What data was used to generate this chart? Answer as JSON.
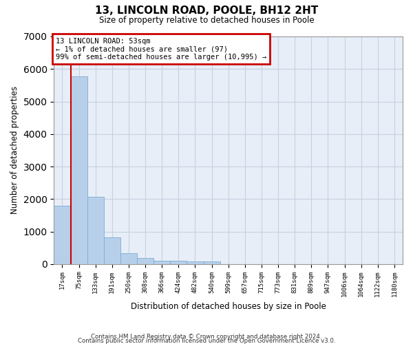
{
  "title": "13, LINCOLN ROAD, POOLE, BH12 2HT",
  "subtitle": "Size of property relative to detached houses in Poole",
  "xlabel": "Distribution of detached houses by size in Poole",
  "ylabel": "Number of detached properties",
  "footer_line1": "Contains HM Land Registry data © Crown copyright and database right 2024.",
  "footer_line2": "Contains public sector information licensed under the Open Government Licence v3.0.",
  "annotation_line1": "13 LINCOLN ROAD: 53sqm",
  "annotation_line2": "← 1% of detached houses are smaller (97)",
  "annotation_line3": "99% of semi-detached houses are larger (10,995) →",
  "bar_color": "#b8cfea",
  "bar_edge_color": "#7aadd4",
  "vline_color": "#cc0000",
  "annotation_box_color": "#cc0000",
  "bg_color": "#e8eef8",
  "grid_color": "#c5d0e0",
  "categories": [
    "17sqm",
    "75sqm",
    "133sqm",
    "191sqm",
    "250sqm",
    "308sqm",
    "366sqm",
    "424sqm",
    "482sqm",
    "540sqm",
    "599sqm",
    "657sqm",
    "715sqm",
    "773sqm",
    "831sqm",
    "889sqm",
    "947sqm",
    "1006sqm",
    "1064sqm",
    "1122sqm",
    "1180sqm"
  ],
  "values": [
    1790,
    5780,
    2060,
    820,
    340,
    195,
    110,
    100,
    90,
    75,
    0,
    0,
    0,
    0,
    0,
    0,
    0,
    0,
    0,
    0,
    0
  ],
  "ylim": [
    0,
    7000
  ],
  "yticks": [
    0,
    1000,
    2000,
    3000,
    4000,
    5000,
    6000,
    7000
  ],
  "vline_x": 0.5
}
